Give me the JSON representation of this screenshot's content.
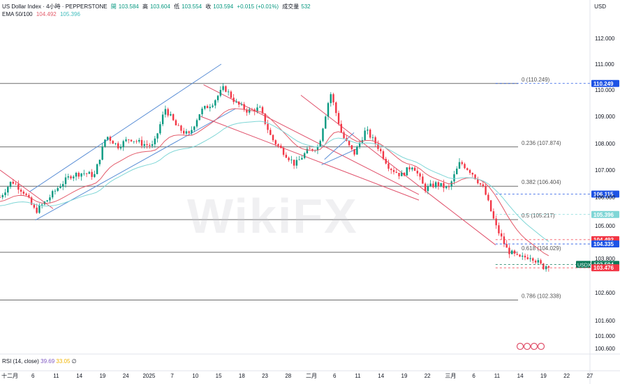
{
  "header": {
    "symbol": "US Dollar Index · 4小時 · PEPPERSTONE",
    "open_label": "開",
    "open": "103.584",
    "high_label": "高",
    "high": "103.604",
    "low_label": "低",
    "low": "103.554",
    "close_label": "收",
    "close": "103.594",
    "change": "+0.015 (+0.01%)",
    "volume_label": "成交量",
    "volume": "532",
    "ema_label": "EMA 50/100",
    "ema50": "104.492",
    "ema100": "105.396",
    "currency": "USD"
  },
  "rsi": {
    "label": "RSI (14, close)",
    "value": "39.69",
    "ma": "33.05",
    "extra": "∅"
  },
  "watermark": "WikiFX",
  "colors": {
    "up": "#089981",
    "down": "#f23645",
    "ema50": "#e35b6a",
    "ema100": "#7fd6d6",
    "fib": "#6b6b6b",
    "channel_blue": "#5b8fd6",
    "channel_red": "#e0506a",
    "price_tag": "#1e53e5",
    "usdx_tag": "#0b7a5a"
  },
  "chart_data": {
    "type": "candlestick",
    "y_axis": {
      "min": 100.6,
      "max": 112.0,
      "ticks": [
        "112.000",
        "111.000",
        "110.000",
        "109.000",
        "108.000",
        "107.000",
        "106.000",
        "105.000",
        "103.800",
        "102.600",
        "101.600",
        "101.000",
        "100.600"
      ]
    },
    "x_axis": {
      "ticks": [
        "十二月",
        "6",
        "11",
        "14",
        "19",
        "24",
        "2025",
        "7",
        "10",
        "15",
        "18",
        "23",
        "28",
        "二月",
        "6",
        "11",
        "14",
        "19",
        "22",
        "三月",
        "6",
        "11",
        "14",
        "19",
        "22",
        "27"
      ]
    },
    "fib_levels": [
      {
        "label": "0 (110.249)",
        "value": 110.249
      },
      {
        "label": "0.236 (107.874)",
        "value": 107.874
      },
      {
        "label": "0.382 (106.404)",
        "value": 106.404
      },
      {
        "label": "0.5 (105.217)",
        "value": 105.217
      },
      {
        "label": "0.618 (104.029)",
        "value": 104.029
      },
      {
        "label": "0.786 (102.338)",
        "value": 102.338
      }
    ],
    "price_tags": [
      {
        "value": 110.249,
        "text": "110.249",
        "color": "#1e53e5"
      },
      {
        "value": 106.115,
        "text": "106.115",
        "color": "#1e53e5"
      },
      {
        "value": 105.396,
        "text": "105.396",
        "color": "#7fd6d6"
      },
      {
        "value": 104.492,
        "text": "104.492",
        "color": "#f23645"
      },
      {
        "value": 104.335,
        "text": "104.335",
        "color": "#1e53e5"
      },
      {
        "value": 103.594,
        "text": "103.594",
        "color": "#0b7a5a",
        "symbol": "USDX"
      },
      {
        "value": 103.476,
        "text": "103.476",
        "color": "#f23645"
      }
    ],
    "close_path": [
      [
        0,
        106.0
      ],
      [
        0.02,
        106.6
      ],
      [
        0.04,
        106.2
      ],
      [
        0.06,
        105.5
      ],
      [
        0.08,
        105.9
      ],
      [
        0.1,
        106.4
      ],
      [
        0.12,
        106.8
      ],
      [
        0.14,
        106.9
      ],
      [
        0.16,
        106.8
      ],
      [
        0.18,
        108.3
      ],
      [
        0.2,
        107.9
      ],
      [
        0.22,
        108.2
      ],
      [
        0.24,
        108.0
      ],
      [
        0.26,
        107.9
      ],
      [
        0.28,
        109.3
      ],
      [
        0.3,
        108.6
      ],
      [
        0.32,
        108.3
      ],
      [
        0.34,
        109.2
      ],
      [
        0.36,
        109.5
      ],
      [
        0.38,
        110.1
      ],
      [
        0.4,
        109.5
      ],
      [
        0.42,
        109.2
      ],
      [
        0.44,
        109.3
      ],
      [
        0.46,
        108.2
      ],
      [
        0.48,
        107.7
      ],
      [
        0.5,
        107.2
      ],
      [
        0.52,
        107.7
      ],
      [
        0.54,
        107.9
      ],
      [
        0.56,
        109.9
      ],
      [
        0.58,
        108.3
      ],
      [
        0.6,
        107.6
      ],
      [
        0.62,
        108.5
      ],
      [
        0.64,
        107.9
      ],
      [
        0.66,
        107.1
      ],
      [
        0.68,
        106.8
      ],
      [
        0.7,
        107.2
      ],
      [
        0.72,
        106.3
      ],
      [
        0.74,
        106.5
      ],
      [
        0.76,
        106.3
      ],
      [
        0.78,
        107.3
      ],
      [
        0.8,
        106.9
      ],
      [
        0.82,
        106.3
      ],
      [
        0.84,
        105.0
      ],
      [
        0.86,
        104.1
      ],
      [
        0.88,
        103.8
      ],
      [
        0.9,
        103.9
      ],
      [
        0.92,
        103.5
      ],
      [
        0.93,
        103.59
      ]
    ]
  }
}
